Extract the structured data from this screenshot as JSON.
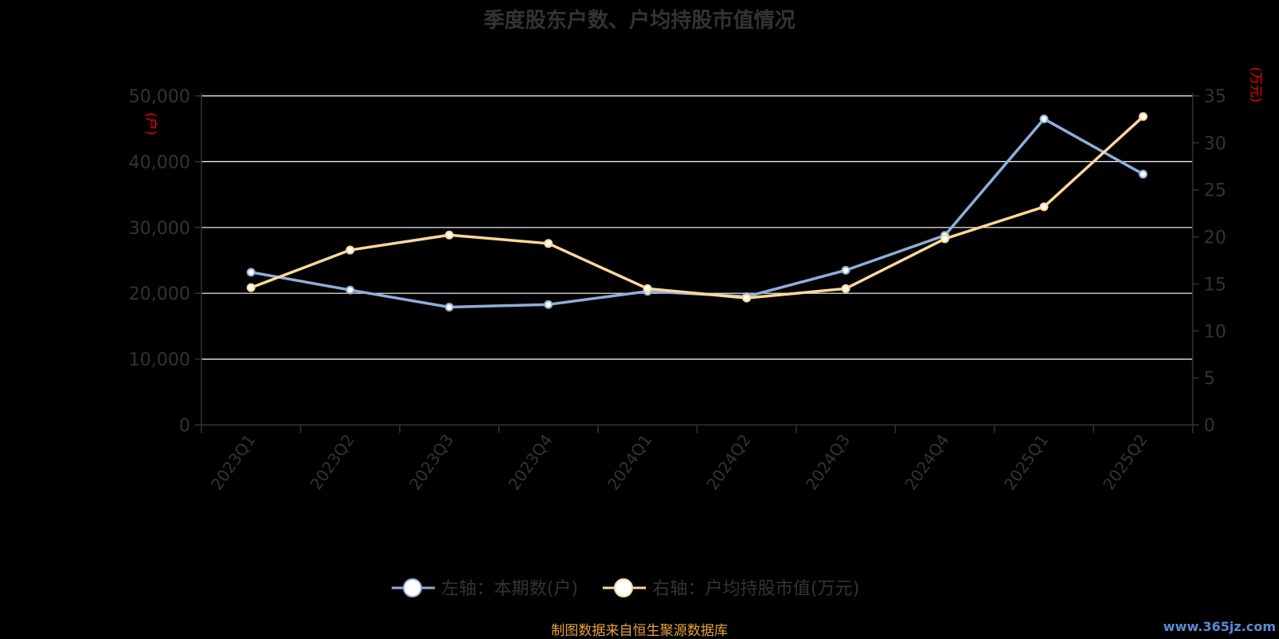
{
  "colors": {
    "background": "#000000",
    "text": "#333333",
    "grid": "#ffffff",
    "axis": "#333333",
    "unit": "#ff0000",
    "footer": "#e6a23c",
    "watermark": "#5b8bd6"
  },
  "footer": {
    "source": "制图数据来自恒生聚源数据库"
  },
  "watermark": {
    "text": "www.365jz.com"
  },
  "chart_data": {
    "type": "line",
    "title": "季度股东户数、户均持股市值情况",
    "categories": [
      "2023Q1",
      "2023Q2",
      "2023Q3",
      "2023Q4",
      "2024Q1",
      "2024Q2",
      "2024Q3",
      "2024Q4",
      "2025Q1",
      "2025Q2"
    ],
    "y_left": {
      "unit_label": "(户)",
      "ylim": [
        0,
        50000
      ],
      "ticks": [
        0,
        10000,
        20000,
        30000,
        40000,
        50000
      ],
      "tick_labels": [
        "0",
        "10,000",
        "20,000",
        "30,000",
        "40,000",
        "50,000"
      ]
    },
    "y_right": {
      "unit_label": "(万元)",
      "ylim": [
        0,
        35
      ],
      "ticks": [
        0,
        5,
        10,
        15,
        20,
        25,
        30,
        35
      ],
      "tick_labels": [
        "0",
        "5",
        "10",
        "15",
        "20",
        "25",
        "30",
        "35"
      ]
    },
    "grid": true,
    "legend_position": "bottom-center",
    "series": [
      {
        "name": "左轴：本期数(户)",
        "axis": "left",
        "color": "#8eaedb",
        "values": [
          23200,
          20500,
          17900,
          18300,
          20300,
          19500,
          23500,
          28800,
          46500,
          38100
        ]
      },
      {
        "name": "右轴：户均持股市值(万元)",
        "axis": "right",
        "color": "#fbd89a",
        "values": [
          14.6,
          18.6,
          20.2,
          19.3,
          14.5,
          13.5,
          14.5,
          19.8,
          23.2,
          32.8
        ]
      }
    ]
  }
}
